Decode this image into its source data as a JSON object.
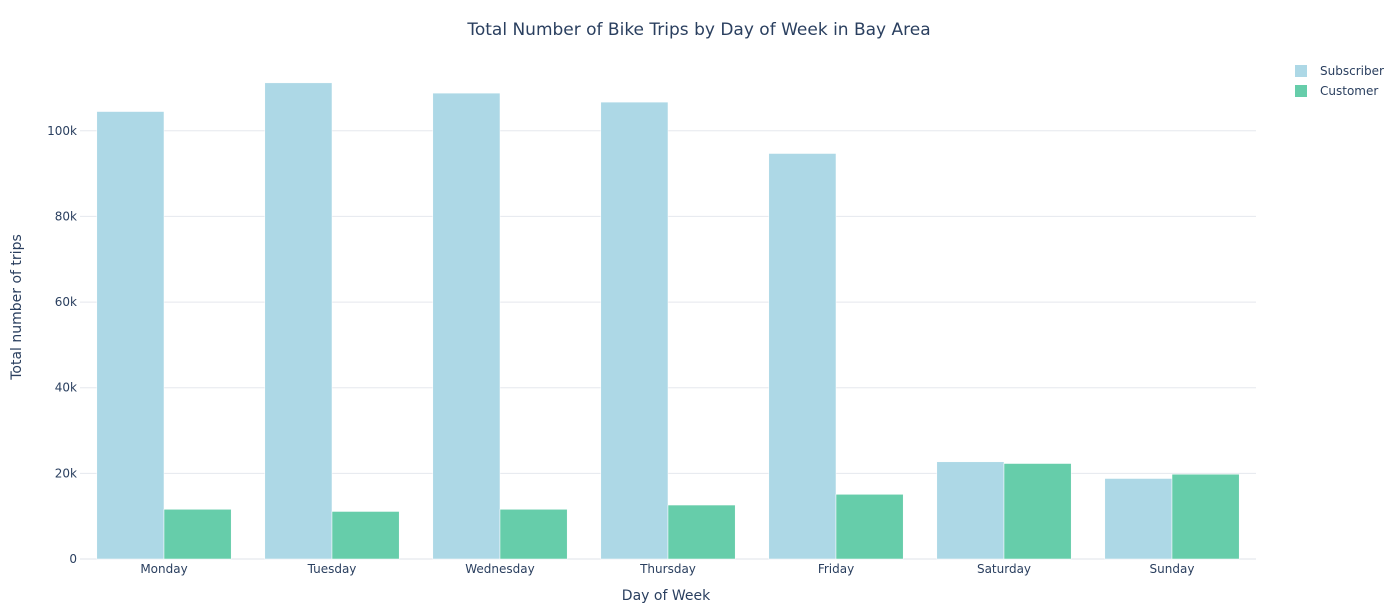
{
  "chart_data": {
    "type": "bar",
    "title": "Total Number of Bike Trips by Day of Week in Bay Area",
    "xlabel": "Day of Week",
    "ylabel": "Total number of trips",
    "categories": [
      "Monday",
      "Tuesday",
      "Wednesday",
      "Thursday",
      "Friday",
      "Saturday",
      "Sunday"
    ],
    "series": [
      {
        "name": "Subscriber",
        "color": "#add8e6",
        "values": [
          104500,
          111200,
          108800,
          106700,
          94700,
          22700,
          18800
        ]
      },
      {
        "name": "Customer",
        "color": "#66cdaa",
        "values": [
          11600,
          11100,
          11600,
          12600,
          15100,
          22300,
          19800
        ]
      }
    ],
    "ylim": [
      0,
      117000
    ],
    "yticks": [
      0,
      20000,
      40000,
      60000,
      80000,
      100000
    ],
    "ytick_labels": [
      "0",
      "20k",
      "40k",
      "60k",
      "80k",
      "100k"
    ],
    "grid": true,
    "legend_position": "top-right"
  }
}
